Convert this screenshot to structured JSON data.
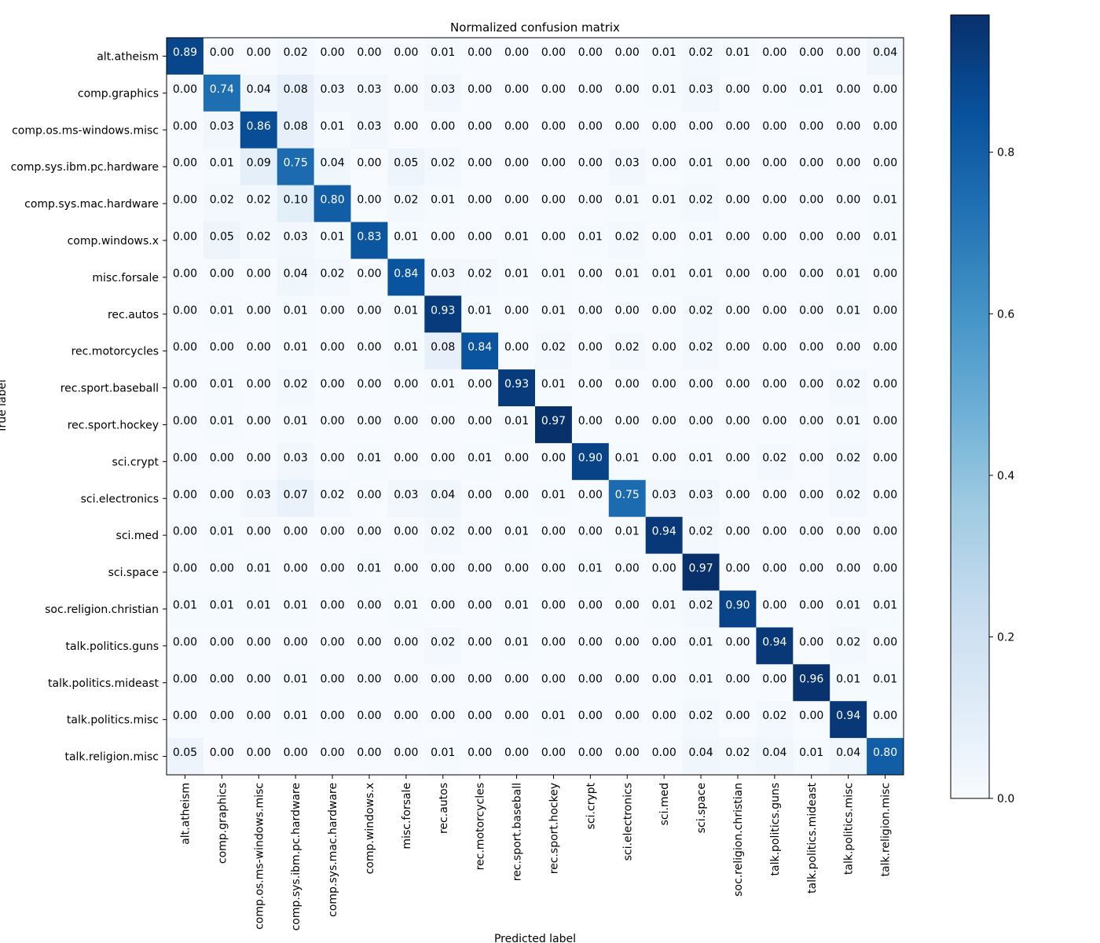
{
  "chart_data": {
    "type": "heatmap",
    "title": "Normalized confusion matrix",
    "xlabel": "Predicted label",
    "ylabel": "True label",
    "colormap": "Blues",
    "vlim": [
      0.0,
      0.97
    ],
    "colorbar_ticks": [
      "0.0",
      "0.2",
      "0.4",
      "0.6",
      "0.8"
    ],
    "grid": false,
    "labels": [
      "alt.atheism",
      "comp.graphics",
      "comp.os.ms-windows.misc",
      "comp.sys.ibm.pc.hardware",
      "comp.sys.mac.hardware",
      "comp.windows.x",
      "misc.forsale",
      "rec.autos",
      "rec.motorcycles",
      "rec.sport.baseball",
      "rec.sport.hockey",
      "sci.crypt",
      "sci.electronics",
      "sci.med",
      "sci.space",
      "soc.religion.christian",
      "talk.politics.guns",
      "talk.politics.mideast",
      "talk.politics.misc",
      "talk.religion.misc"
    ],
    "matrix": [
      [
        0.89,
        0.0,
        0.0,
        0.02,
        0.0,
        0.0,
        0.0,
        0.01,
        0.0,
        0.0,
        0.0,
        0.0,
        0.0,
        0.01,
        0.02,
        0.01,
        0.0,
        0.0,
        0.0,
        0.04
      ],
      [
        0.0,
        0.74,
        0.04,
        0.08,
        0.03,
        0.03,
        0.0,
        0.03,
        0.0,
        0.0,
        0.0,
        0.0,
        0.0,
        0.01,
        0.03,
        0.0,
        0.0,
        0.01,
        0.0,
        0.0
      ],
      [
        0.0,
        0.03,
        0.86,
        0.08,
        0.01,
        0.03,
        0.0,
        0.0,
        0.0,
        0.0,
        0.0,
        0.0,
        0.0,
        0.0,
        0.0,
        0.0,
        0.0,
        0.0,
        0.0,
        0.0
      ],
      [
        0.0,
        0.01,
        0.09,
        0.75,
        0.04,
        0.0,
        0.05,
        0.02,
        0.0,
        0.0,
        0.0,
        0.0,
        0.03,
        0.0,
        0.01,
        0.0,
        0.0,
        0.0,
        0.0,
        0.0
      ],
      [
        0.0,
        0.02,
        0.02,
        0.1,
        0.8,
        0.0,
        0.02,
        0.01,
        0.0,
        0.0,
        0.0,
        0.0,
        0.01,
        0.01,
        0.02,
        0.0,
        0.0,
        0.0,
        0.0,
        0.01
      ],
      [
        0.0,
        0.05,
        0.02,
        0.03,
        0.01,
        0.83,
        0.01,
        0.0,
        0.0,
        0.01,
        0.0,
        0.01,
        0.02,
        0.0,
        0.01,
        0.0,
        0.0,
        0.0,
        0.0,
        0.01
      ],
      [
        0.0,
        0.0,
        0.0,
        0.04,
        0.02,
        0.0,
        0.84,
        0.03,
        0.02,
        0.01,
        0.01,
        0.0,
        0.01,
        0.01,
        0.01,
        0.0,
        0.0,
        0.0,
        0.01,
        0.0
      ],
      [
        0.0,
        0.01,
        0.0,
        0.01,
        0.0,
        0.0,
        0.01,
        0.93,
        0.01,
        0.0,
        0.01,
        0.0,
        0.0,
        0.0,
        0.02,
        0.0,
        0.0,
        0.0,
        0.01,
        0.0
      ],
      [
        0.0,
        0.0,
        0.0,
        0.01,
        0.0,
        0.0,
        0.01,
        0.08,
        0.84,
        0.0,
        0.02,
        0.0,
        0.02,
        0.0,
        0.02,
        0.0,
        0.0,
        0.0,
        0.0,
        0.0
      ],
      [
        0.0,
        0.01,
        0.0,
        0.02,
        0.0,
        0.0,
        0.0,
        0.01,
        0.0,
        0.93,
        0.01,
        0.0,
        0.0,
        0.0,
        0.0,
        0.0,
        0.0,
        0.0,
        0.02,
        0.0
      ],
      [
        0.0,
        0.01,
        0.0,
        0.01,
        0.0,
        0.0,
        0.0,
        0.0,
        0.0,
        0.01,
        0.97,
        0.0,
        0.0,
        0.0,
        0.0,
        0.0,
        0.0,
        0.0,
        0.01,
        0.0
      ],
      [
        0.0,
        0.0,
        0.0,
        0.03,
        0.0,
        0.01,
        0.0,
        0.0,
        0.01,
        0.0,
        0.0,
        0.9,
        0.01,
        0.0,
        0.01,
        0.0,
        0.02,
        0.0,
        0.02,
        0.0
      ],
      [
        0.0,
        0.0,
        0.03,
        0.07,
        0.02,
        0.0,
        0.03,
        0.04,
        0.0,
        0.0,
        0.01,
        0.0,
        0.75,
        0.03,
        0.03,
        0.0,
        0.0,
        0.0,
        0.02,
        0.0
      ],
      [
        0.0,
        0.01,
        0.0,
        0.0,
        0.0,
        0.0,
        0.0,
        0.02,
        0.0,
        0.01,
        0.0,
        0.0,
        0.01,
        0.94,
        0.02,
        0.0,
        0.0,
        0.0,
        0.0,
        0.0
      ],
      [
        0.0,
        0.0,
        0.01,
        0.0,
        0.0,
        0.01,
        0.0,
        0.0,
        0.0,
        0.0,
        0.0,
        0.01,
        0.0,
        0.0,
        0.97,
        0.0,
        0.0,
        0.0,
        0.0,
        0.0
      ],
      [
        0.01,
        0.01,
        0.01,
        0.01,
        0.0,
        0.0,
        0.01,
        0.0,
        0.0,
        0.01,
        0.0,
        0.0,
        0.0,
        0.01,
        0.02,
        0.9,
        0.0,
        0.0,
        0.01,
        0.01
      ],
      [
        0.0,
        0.0,
        0.0,
        0.0,
        0.0,
        0.0,
        0.0,
        0.02,
        0.0,
        0.01,
        0.0,
        0.0,
        0.0,
        0.0,
        0.01,
        0.0,
        0.94,
        0.0,
        0.02,
        0.0
      ],
      [
        0.0,
        0.0,
        0.0,
        0.01,
        0.0,
        0.0,
        0.0,
        0.0,
        0.0,
        0.0,
        0.0,
        0.0,
        0.0,
        0.0,
        0.01,
        0.0,
        0.0,
        0.96,
        0.01,
        0.01
      ],
      [
        0.0,
        0.0,
        0.0,
        0.01,
        0.0,
        0.0,
        0.0,
        0.0,
        0.0,
        0.0,
        0.01,
        0.0,
        0.0,
        0.0,
        0.02,
        0.0,
        0.02,
        0.0,
        0.94,
        0.0
      ],
      [
        0.05,
        0.0,
        0.0,
        0.0,
        0.0,
        0.0,
        0.0,
        0.01,
        0.0,
        0.0,
        0.0,
        0.0,
        0.0,
        0.0,
        0.04,
        0.02,
        0.04,
        0.01,
        0.04,
        0.8
      ]
    ]
  }
}
